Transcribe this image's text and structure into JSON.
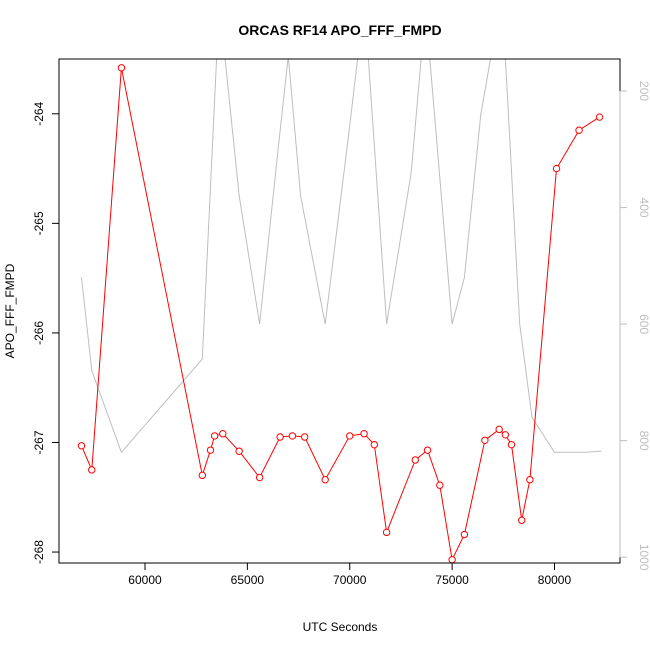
{
  "chart_data": {
    "type": "line",
    "title": "ORCAS RF14 APO_FFF_FMPD",
    "xlabel": "UTC Seconds",
    "ylabel": "APO_FFF_FMPD",
    "xlim": [
      55800,
      83200
    ],
    "ylim": [
      -268.1,
      -263.5
    ],
    "xticks": [
      60000,
      65000,
      70000,
      75000,
      80000
    ],
    "yticks": [
      -264,
      -265,
      -266,
      -267,
      -268
    ],
    "y2lim": [
      1010,
      145
    ],
    "y2ticks": [
      200,
      400,
      600,
      800,
      1000
    ],
    "grid": false,
    "legend": "none",
    "series": [
      {
        "color": "#ff0000",
        "style": "line-with-open-circles",
        "axis": "left",
        "x": [
          56900,
          57400,
          58850,
          62800,
          63200,
          63400,
          63800,
          64600,
          65600,
          66600,
          67200,
          67800,
          68800,
          70000,
          70700,
          71200,
          71800,
          73200,
          73800,
          74400,
          75000,
          75600,
          76600,
          77300,
          77600,
          77900,
          78400,
          78800,
          80100,
          81200,
          82200
        ],
        "y": [
          -267.03,
          -267.25,
          -263.58,
          -267.3,
          -267.07,
          -266.94,
          -266.92,
          -267.08,
          -267.32,
          -266.95,
          -266.94,
          -266.95,
          -267.34,
          -266.94,
          -266.92,
          -267.02,
          -267.82,
          -267.16,
          -267.07,
          -267.39,
          -268.07,
          -267.84,
          -266.98,
          -266.88,
          -266.93,
          -267.02,
          -267.71,
          -267.34,
          -264.5,
          -264.15,
          -264.03
        ]
      },
      {
        "color": "#bebebe",
        "style": "line",
        "axis": "right",
        "x": [
          56900,
          57400,
          58850,
          62800,
          63500,
          63900,
          64600,
          65600,
          66500,
          67000,
          67600,
          68800,
          70000,
          70400,
          70900,
          71800,
          73000,
          73500,
          73900,
          75000,
          75600,
          76400,
          76900,
          77600,
          78300,
          78900,
          80000,
          81500,
          82300
        ],
        "y": [
          520,
          680,
          820,
          660,
          140,
          140,
          380,
          600,
          300,
          140,
          380,
          600,
          260,
          140,
          140,
          600,
          340,
          140,
          140,
          600,
          520,
          240,
          140,
          140,
          600,
          760,
          820,
          820,
          818
        ]
      }
    ]
  }
}
